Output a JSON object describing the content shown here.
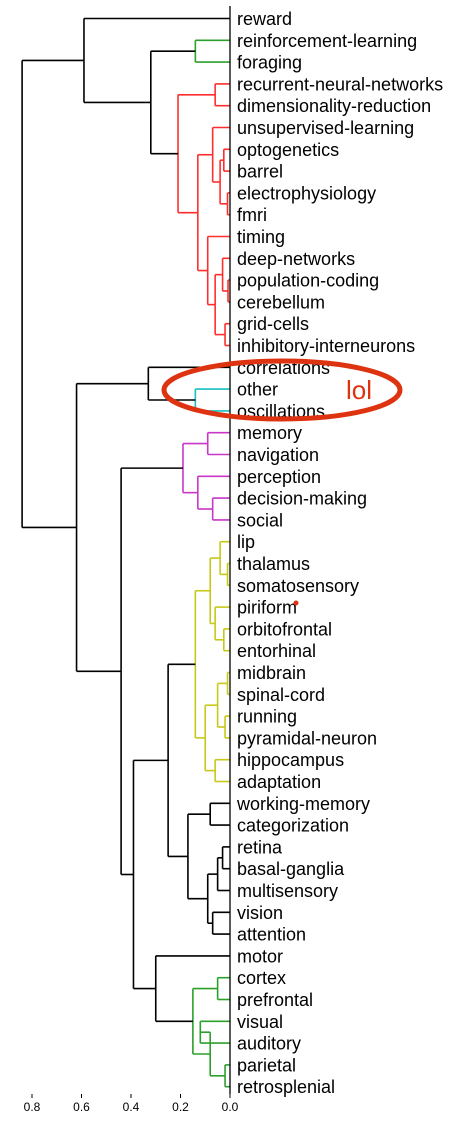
{
  "chart_data": {
    "type": "dendrogram",
    "orientation": "left",
    "title": "",
    "xlabel": "",
    "ylabel": "",
    "xlim": [
      0.85,
      0.0
    ],
    "x_ticks": [
      "0.8",
      "0.6",
      "0.4",
      "0.2",
      "0.0"
    ],
    "x_tick_values": [
      0.8,
      0.6,
      0.4,
      0.2,
      0.0
    ],
    "leaves": [
      "reward",
      "reinforcement-learning",
      "foraging",
      "recurrent-neural-networks",
      "dimensionality-reduction",
      "unsupervised-learning",
      "optogenetics",
      "barrel",
      "electrophysiology",
      "fmri",
      "timing",
      "deep-networks",
      "population-coding",
      "cerebellum",
      "grid-cells",
      "inhibitory-interneurons",
      "correlations",
      "other",
      "oscillations",
      "memory",
      "navigation",
      "perception",
      "decision-making",
      "social",
      "lip",
      "thalamus",
      "somatosensory",
      "piriform",
      "orbitofrontal",
      "entorhinal",
      "midbrain",
      "spinal-cord",
      "running",
      "pyramidal-neuron",
      "hippocampus",
      "adaptation",
      "working-memory",
      "categorization",
      "retina",
      "basal-ganglia",
      "multisensory",
      "vision",
      "attention",
      "motor",
      "cortex",
      "prefrontal",
      "visual",
      "auditory",
      "parietal",
      "retrosplenial"
    ],
    "colors": {
      "black": "#000000",
      "green": "#2ca02c",
      "red": "#ff2e2e",
      "cyan": "#17bfbf",
      "magenta": "#c837c8",
      "olive": "#c8c81a",
      "annotation": "#dd3311"
    },
    "links": [
      {
        "id": "L1",
        "a": 1,
        "b": 2,
        "h": 0.14,
        "color": "green"
      },
      {
        "id": "L2",
        "a": 3,
        "b": 4,
        "h": 0.06,
        "color": "red"
      },
      {
        "id": "L3",
        "a": 6,
        "b": 7,
        "h": 0.025,
        "color": "red"
      },
      {
        "id": "L4",
        "a": 8,
        "b": 9,
        "h": 0.01,
        "color": "red"
      },
      {
        "id": "L5",
        "a": "L3",
        "b": "L4",
        "h": 0.04,
        "color": "red"
      },
      {
        "id": "L6",
        "a": 5,
        "b": "L5",
        "h": 0.07,
        "color": "red"
      },
      {
        "id": "L7",
        "a": 12,
        "b": 13,
        "h": 0.008,
        "color": "red"
      },
      {
        "id": "L8",
        "a": 11,
        "b": "L7",
        "h": 0.03,
        "color": "red"
      },
      {
        "id": "L9",
        "a": 14,
        "b": 15,
        "h": 0.02,
        "color": "red"
      },
      {
        "id": "L10",
        "a": "L8",
        "b": "L9",
        "h": 0.06,
        "color": "red"
      },
      {
        "id": "L11",
        "a": 10,
        "b": "L10",
        "h": 0.09,
        "color": "red"
      },
      {
        "id": "L12",
        "a": "L6",
        "b": "L11",
        "h": 0.13,
        "color": "red"
      },
      {
        "id": "L13",
        "a": "L2",
        "b": "L12",
        "h": 0.21,
        "color": "red"
      },
      {
        "id": "L14",
        "a": "L1",
        "b": "L13",
        "h": 0.32,
        "color": "black"
      },
      {
        "id": "L15",
        "a": 0,
        "b": "L14",
        "h": 0.59,
        "color": "black"
      },
      {
        "id": "L16",
        "a": 17,
        "b": 18,
        "h": 0.14,
        "color": "cyan"
      },
      {
        "id": "L17",
        "a": 16,
        "b": "L16",
        "h": 0.33,
        "color": "black"
      },
      {
        "id": "L18",
        "a": 19,
        "b": 20,
        "h": 0.09,
        "color": "magenta"
      },
      {
        "id": "L19",
        "a": 22,
        "b": 23,
        "h": 0.07,
        "color": "magenta"
      },
      {
        "id": "L20",
        "a": 21,
        "b": "L19",
        "h": 0.13,
        "color": "magenta"
      },
      {
        "id": "L21",
        "a": "L18",
        "b": "L20",
        "h": 0.19,
        "color": "magenta"
      },
      {
        "id": "L22",
        "a": 25,
        "b": 26,
        "h": 0.01,
        "color": "olive"
      },
      {
        "id": "L23",
        "a": 24,
        "b": "L22",
        "h": 0.04,
        "color": "olive"
      },
      {
        "id": "L24",
        "a": 28,
        "b": 29,
        "h": 0.025,
        "color": "olive"
      },
      {
        "id": "L25",
        "a": 27,
        "b": "L24",
        "h": 0.06,
        "color": "olive"
      },
      {
        "id": "L26",
        "a": "L23",
        "b": "L25",
        "h": 0.08,
        "color": "olive"
      },
      {
        "id": "L27",
        "a": 30,
        "b": 31,
        "h": 0.01,
        "color": "olive"
      },
      {
        "id": "L28",
        "a": 32,
        "b": 33,
        "h": 0.02,
        "color": "olive"
      },
      {
        "id": "L29",
        "a": "L27",
        "b": "L28",
        "h": 0.05,
        "color": "olive"
      },
      {
        "id": "L30",
        "a": 34,
        "b": 35,
        "h": 0.06,
        "color": "olive"
      },
      {
        "id": "L31",
        "a": "L29",
        "b": "L30",
        "h": 0.1,
        "color": "olive"
      },
      {
        "id": "L32",
        "a": "L26",
        "b": "L31",
        "h": 0.14,
        "color": "olive"
      },
      {
        "id": "L33",
        "a": 36,
        "b": 37,
        "h": 0.08,
        "color": "black"
      },
      {
        "id": "L34",
        "a": 38,
        "b": 39,
        "h": 0.03,
        "color": "black"
      },
      {
        "id": "L35",
        "a": "L34",
        "b": 40,
        "h": 0.05,
        "color": "black"
      },
      {
        "id": "L36",
        "a": 41,
        "b": 42,
        "h": 0.07,
        "color": "black"
      },
      {
        "id": "L37",
        "a": "L35",
        "b": "L36",
        "h": 0.09,
        "color": "black"
      },
      {
        "id": "L38",
        "a": "L33",
        "b": "L37",
        "h": 0.17,
        "color": "black"
      },
      {
        "id": "L39",
        "a": "L32",
        "b": "L38",
        "h": 0.25,
        "color": "black"
      },
      {
        "id": "L40",
        "a": 46,
        "b": 47,
        "h": 0.12,
        "color": "green"
      },
      {
        "id": "L41",
        "a": 48,
        "b": 49,
        "h": 0.02,
        "color": "green"
      },
      {
        "id": "L42",
        "a": "L40",
        "b": "L41",
        "h": 0.08,
        "color": "green"
      },
      {
        "id": "L43",
        "a": 44,
        "b": 45,
        "h": 0.05,
        "color": "green"
      },
      {
        "id": "L44",
        "a": "L43",
        "b": "L42",
        "h": 0.15,
        "color": "green"
      },
      {
        "id": "L45",
        "a": 43,
        "b": "L44",
        "h": 0.3,
        "color": "black"
      },
      {
        "id": "L46",
        "a": "L39",
        "b": "L45",
        "h": 0.39,
        "color": "black"
      },
      {
        "id": "L47",
        "a": "L21",
        "b": "L46",
        "h": 0.44,
        "color": "black"
      },
      {
        "id": "L48",
        "a": "L17",
        "b": "L47",
        "h": 0.62,
        "color": "black"
      },
      {
        "id": "L49",
        "a": "L15",
        "b": "L48",
        "h": 0.84,
        "color": "black"
      }
    ]
  },
  "annotation": {
    "text": "lol",
    "color": "#dd3311",
    "encircles": [
      "correlations",
      "other",
      "oscillations"
    ]
  }
}
